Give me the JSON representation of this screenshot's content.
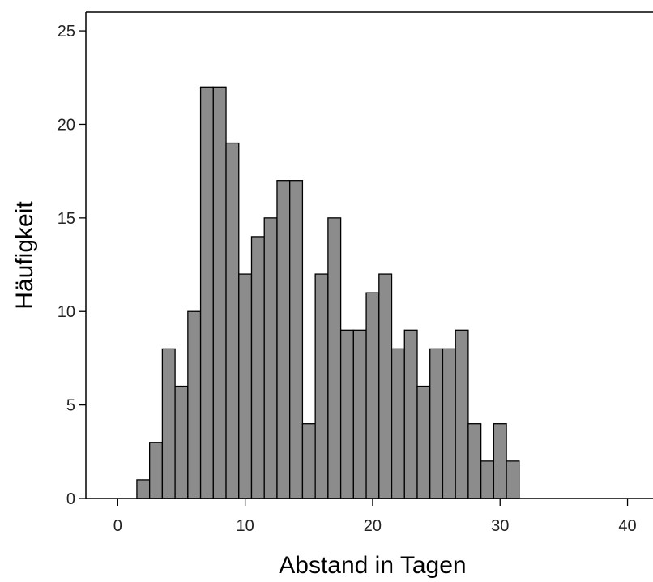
{
  "chart_data": {
    "type": "bar",
    "subtype": "histogram",
    "title": "",
    "xlabel": "Abstand in Tagen",
    "ylabel": "Häufigkeit",
    "xlim": [
      -2.5,
      42
    ],
    "ylim": [
      0,
      26
    ],
    "x_ticks": [
      0,
      10,
      20,
      30,
      40
    ],
    "y_ticks": [
      0,
      5,
      10,
      15,
      20,
      25
    ],
    "bin_width": 1,
    "bin_centers": [
      2,
      3,
      4,
      5,
      6,
      7,
      8,
      9,
      10,
      11,
      12,
      13,
      14,
      15,
      16,
      17,
      18,
      19,
      20,
      21,
      22,
      23,
      24,
      25,
      26,
      27,
      28,
      29,
      30,
      31
    ],
    "values": [
      1,
      3,
      8,
      6,
      10,
      22,
      22,
      19,
      12,
      14,
      15,
      17,
      17,
      4,
      12,
      15,
      9,
      9,
      11,
      12,
      8,
      9,
      6,
      8,
      8,
      9,
      4,
      2,
      4,
      2
    ],
    "grid": false,
    "legend": "none",
    "colors": {
      "bar_fill": "#8c8c8c",
      "bar_stroke": "#000000",
      "axis": "#000000",
      "background": "#ffffff"
    }
  }
}
